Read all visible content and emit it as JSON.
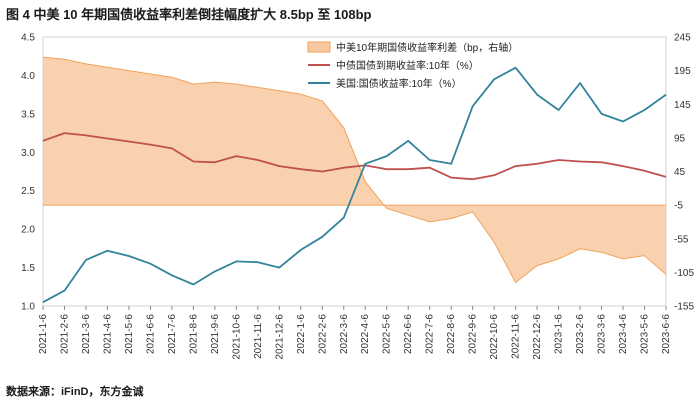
{
  "header": {
    "title": "图 4  中美 10 年期国债收益率利差倒挂幅度扩大 8.5bp 至 108bp"
  },
  "footer": {
    "source": "数据来源：iFinD，东方金诚"
  },
  "colors": {
    "spread_fill": "#f8c9a0",
    "spread_line": "#f0a25a",
    "cn_line": "#c0504d",
    "us_line": "#31849b"
  },
  "chart_data": {
    "type": "line",
    "x_labels": [
      "2021-1-6",
      "2021-2-6",
      "2021-3-6",
      "2021-4-6",
      "2021-5-6",
      "2021-6-6",
      "2021-7-6",
      "2021-8-6",
      "2021-9-6",
      "2021-10-6",
      "2021-11-6",
      "2021-12-6",
      "2022-1-6",
      "2022-2-6",
      "2022-3-6",
      "2022-4-6",
      "2022-5-6",
      "2022-6-6",
      "2022-7-6",
      "2022-8-6",
      "2022-9-6",
      "2022-10-6",
      "2022-11-6",
      "2022-12-6",
      "2023-1-6",
      "2023-2-6",
      "2023-3-6",
      "2023-4-6",
      "2023-5-6",
      "2023-6-6"
    ],
    "y_left": {
      "min": 1.0,
      "max": 4.5,
      "ticks": [
        "1.0",
        "1.5",
        "2.0",
        "2.5",
        "3.0",
        "3.5",
        "4.0",
        "4.5"
      ]
    },
    "y_right": {
      "min": -155,
      "max": 245,
      "ticks": [
        "-155",
        "-105",
        "-55",
        "-5",
        "45",
        "95",
        "145",
        "195",
        "245"
      ]
    },
    "legend": "top-right",
    "series": [
      {
        "name": "中美10年期国债收益率利差（bp，右轴）",
        "axis": "right",
        "style": "area",
        "values": [
          215,
          212,
          205,
          200,
          195,
          190,
          185,
          175,
          178,
          175,
          170,
          165,
          160,
          150,
          110,
          30,
          -10,
          -20,
          -30,
          -25,
          -15,
          -60,
          -120,
          -95,
          -85,
          -70,
          -75,
          -85,
          -80,
          -108
        ]
      },
      {
        "name": "中债国债到期收益率:10年（%）",
        "axis": "left",
        "style": "line",
        "values": [
          3.15,
          3.25,
          3.22,
          3.18,
          3.14,
          3.1,
          3.05,
          2.88,
          2.87,
          2.95,
          2.9,
          2.82,
          2.78,
          2.75,
          2.8,
          2.83,
          2.78,
          2.78,
          2.8,
          2.67,
          2.65,
          2.7,
          2.82,
          2.85,
          2.9,
          2.88,
          2.87,
          2.82,
          2.76,
          2.68
        ]
      },
      {
        "name": "美国:国债收益率:10年（%）",
        "axis": "left",
        "style": "line",
        "values": [
          1.05,
          1.2,
          1.6,
          1.72,
          1.65,
          1.55,
          1.4,
          1.28,
          1.45,
          1.58,
          1.57,
          1.5,
          1.73,
          1.9,
          2.15,
          2.85,
          2.95,
          3.15,
          2.9,
          2.85,
          3.6,
          3.95,
          4.1,
          3.75,
          3.55,
          3.9,
          3.5,
          3.4,
          3.55,
          3.75
        ]
      }
    ]
  }
}
